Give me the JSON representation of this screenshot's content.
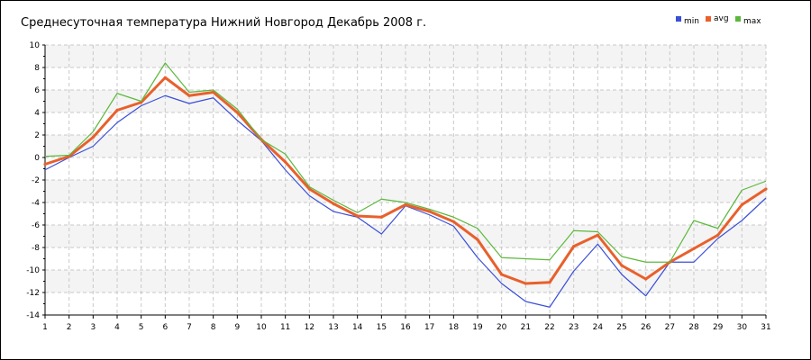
{
  "chart_data": {
    "type": "line",
    "title": "Среднесуточная температура Нижний Новгород  Декабрь 2008 г.",
    "xlabel": "",
    "ylabel": "",
    "x": [
      1,
      2,
      3,
      4,
      5,
      6,
      7,
      8,
      9,
      10,
      11,
      12,
      13,
      14,
      15,
      16,
      17,
      18,
      19,
      20,
      21,
      22,
      23,
      24,
      25,
      26,
      27,
      28,
      29,
      30,
      31
    ],
    "ylim": [
      -14,
      10
    ],
    "yticks": [
      10,
      8,
      6,
      4,
      2,
      0,
      -2,
      -4,
      -6,
      -8,
      -10,
      -12,
      -14
    ],
    "grid": true,
    "legend": "top-right",
    "series": [
      {
        "name": "min",
        "color": "#3a4fd8",
        "values": [
          -1.1,
          0.0,
          1.0,
          3.1,
          4.6,
          5.5,
          4.8,
          5.3,
          3.3,
          1.5,
          -1.1,
          -3.4,
          -4.8,
          -5.3,
          -6.8,
          -4.3,
          -5.1,
          -6.1,
          -8.9,
          -11.2,
          -12.8,
          -13.3,
          -10.1,
          -7.7,
          -10.4,
          -12.3,
          -9.3,
          -9.3,
          -7.2,
          -5.6,
          -3.6
        ]
      },
      {
        "name": "avg",
        "color": "#e8602c",
        "values": [
          -0.6,
          0.1,
          1.8,
          4.2,
          4.9,
          7.1,
          5.5,
          5.8,
          4.0,
          1.6,
          -0.4,
          -2.8,
          -4.1,
          -5.2,
          -5.3,
          -4.2,
          -4.8,
          -5.7,
          -7.3,
          -10.4,
          -11.2,
          -11.1,
          -7.9,
          -6.9,
          -9.6,
          -10.8,
          -9.3,
          -8.1,
          -6.9,
          -4.2,
          -2.8
        ]
      },
      {
        "name": "max",
        "color": "#5cb83c",
        "values": [
          0.1,
          0.2,
          2.3,
          5.7,
          5.0,
          8.4,
          5.8,
          6.0,
          4.3,
          1.6,
          0.3,
          -2.6,
          -3.8,
          -4.9,
          -3.7,
          -4.0,
          -4.6,
          -5.3,
          -6.3,
          -8.9,
          -9.0,
          -9.1,
          -6.5,
          -6.6,
          -8.8,
          -9.3,
          -9.3,
          -5.6,
          -6.3,
          -2.9,
          -2.1
        ]
      }
    ]
  }
}
